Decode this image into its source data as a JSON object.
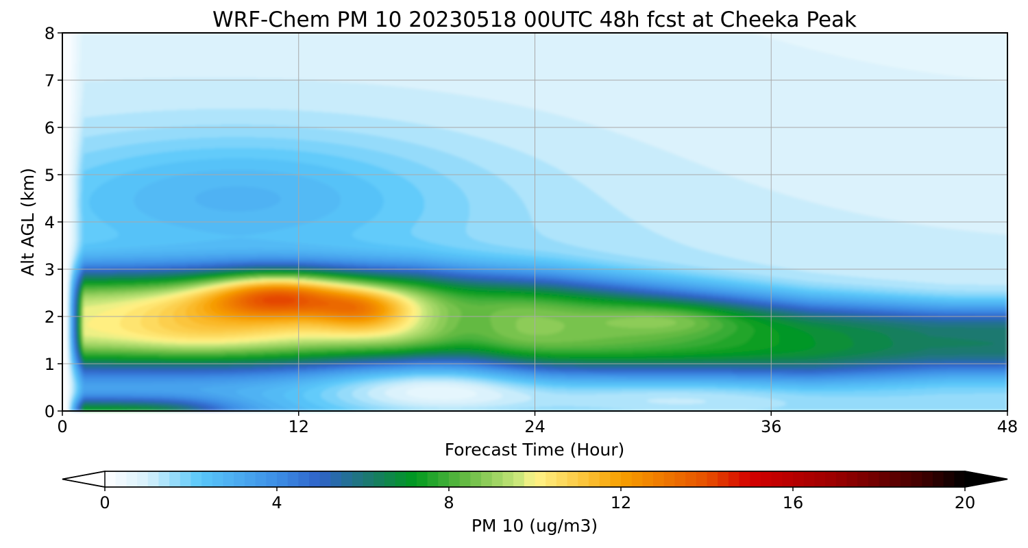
{
  "chart_data": {
    "type": "heatmap",
    "title": "WRF-Chem PM 10  20230518 00UTC 48h fcst at Cheeka Peak",
    "xlabel": "Forecast Time (Hour)",
    "ylabel": "Alt AGL (km)",
    "xlim": [
      0,
      48
    ],
    "ylim": [
      0,
      8
    ],
    "x_ticks": [
      0,
      12,
      24,
      36,
      48
    ],
    "y_ticks": [
      0,
      1,
      2,
      3,
      4,
      5,
      6,
      7,
      8
    ],
    "x_tick_labels": [
      "0",
      "12",
      "24",
      "36",
      "48"
    ],
    "y_tick_labels": [
      "0",
      "1",
      "2",
      "3",
      "4",
      "5",
      "6",
      "7",
      "8"
    ],
    "grid": true,
    "colorbar": {
      "label": "PM 10  (ug/m3)",
      "min": 0,
      "max": 20,
      "ticks": [
        0,
        4,
        8,
        12,
        16,
        20
      ],
      "tick_labels": [
        "0",
        "4",
        "8",
        "12",
        "16",
        "20"
      ],
      "extend": "both",
      "orientation": "horizontal",
      "color_stops": [
        {
          "value": 0,
          "color": "#ffffff"
        },
        {
          "value": 1,
          "color": "#d6f0fb"
        },
        {
          "value": 2.2,
          "color": "#5ac8fa"
        },
        {
          "value": 4,
          "color": "#3d8ee6"
        },
        {
          "value": 5,
          "color": "#2f63c8"
        },
        {
          "value": 6.2,
          "color": "#1a7a6a"
        },
        {
          "value": 7.2,
          "color": "#00991f"
        },
        {
          "value": 8.4,
          "color": "#66bb44"
        },
        {
          "value": 9.6,
          "color": "#c8e67a"
        },
        {
          "value": 10,
          "color": "#fff48a"
        },
        {
          "value": 12,
          "color": "#f7a000"
        },
        {
          "value": 14,
          "color": "#e65000"
        },
        {
          "value": 15,
          "color": "#d40000"
        },
        {
          "value": 17,
          "color": "#9a0000"
        },
        {
          "value": 19,
          "color": "#400000"
        },
        {
          "value": 20,
          "color": "#000000"
        }
      ]
    },
    "features": [
      {
        "name": "main aerosol layer",
        "t_range": [
          1,
          46
        ],
        "alt_center_km": 1.9,
        "peak_value": 8.0
      },
      {
        "name": "elevated maximum",
        "t_range": [
          8,
          18
        ],
        "alt_center_km": 2.4,
        "peak_value": 12.0
      },
      {
        "name": "surface layer",
        "t_range": [
          1,
          8
        ],
        "alt_center_km": 0.1,
        "peak_value": 9.0
      },
      {
        "name": "upper plume",
        "t_range": [
          0,
          22
        ],
        "alt_center_km": 5.0,
        "peak_value": 2.0
      }
    ]
  }
}
